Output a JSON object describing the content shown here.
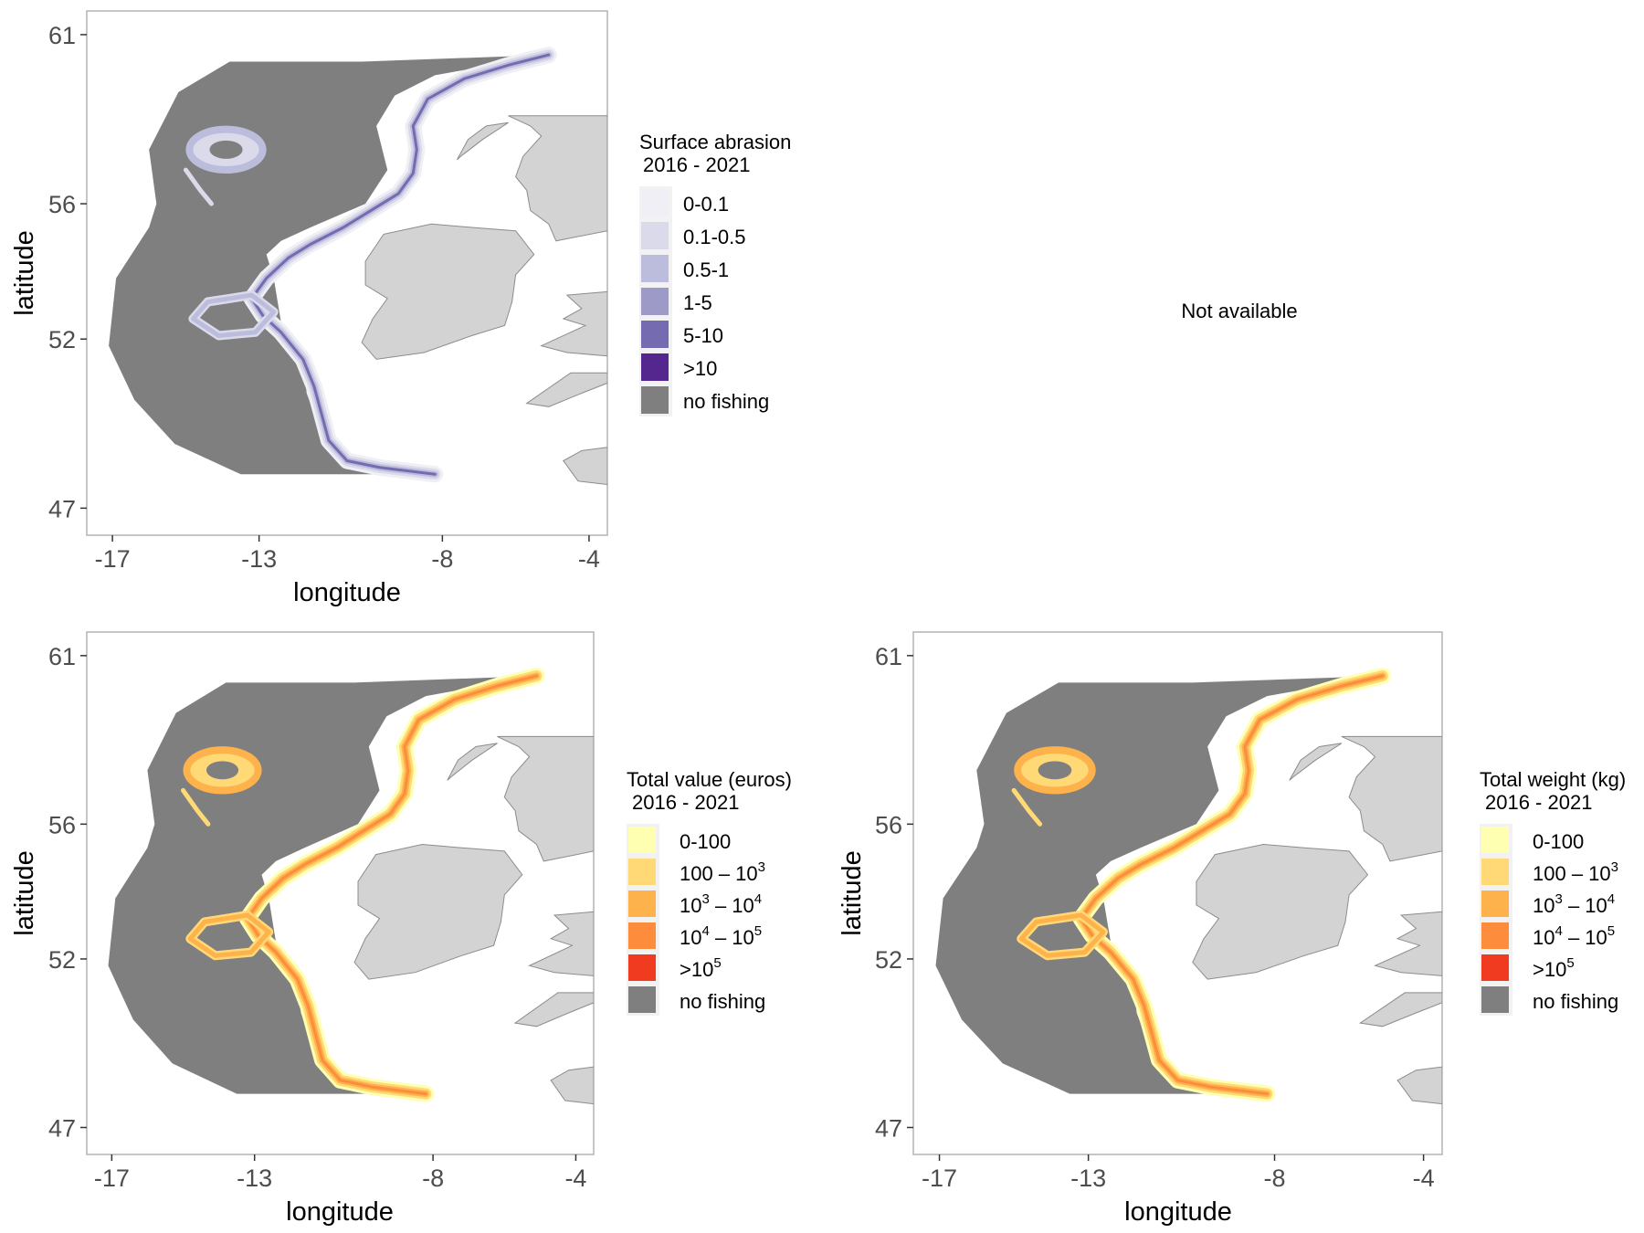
{
  "colors": {
    "no_fishing": "#7f7f7f",
    "land": "#d3d3d3",
    "land_border": "#8c8c8c",
    "panel_border": "#b3b3b3",
    "abrasion": [
      "#efeff5",
      "#dadaeb",
      "#bcbddc",
      "#9e9ac8",
      "#756bb1",
      "#54278f"
    ],
    "value": [
      "#ffffb2",
      "#fed976",
      "#feb24c",
      "#fd8d3c",
      "#f03b20"
    ]
  },
  "axes": {
    "xlabel": "longitude",
    "ylabel": "latitude",
    "xticks": [
      "-17",
      "-13",
      "-8",
      "-4"
    ],
    "yticks": [
      "61",
      "56",
      "52",
      "47"
    ],
    "xtick_values": [
      -17,
      -13,
      -8,
      -4
    ],
    "ytick_values": [
      61,
      56,
      52,
      47
    ],
    "xlim": [
      -17.7,
      -3.5
    ],
    "ylim": [
      46.2,
      61.7
    ]
  },
  "panels": {
    "abrasion": {
      "legend_title_1": "Surface abrasion",
      "legend_title_2": "2016 - 2021",
      "labels": [
        "0-0.1",
        "0.1-0.5",
        "0.5-1",
        "1-5",
        "5-10",
        ">10",
        "no fishing"
      ]
    },
    "not_available": {
      "text": "Not available"
    },
    "value": {
      "legend_title_1": "Total value (euros)",
      "legend_title_2": "2016 - 2021",
      "labels": [
        "0-100",
        "100 – 10^3",
        "10^3 – 10^4",
        "10^4 – 10^5",
        ">10^5",
        "no fishing"
      ]
    },
    "weight": {
      "legend_title_1": "Total weight (kg)",
      "legend_title_2": "2016 - 2021",
      "labels": [
        "0-100",
        "100 – 10^3",
        "10^3 – 10^4",
        "10^4 – 10^5",
        ">10^5",
        "no fishing"
      ]
    }
  },
  "map_data": {
    "region_outline": [
      [
        -10.2,
        60.2
      ],
      [
        -5.1,
        60.4
      ],
      [
        -8.2,
        59.8
      ],
      [
        -9.3,
        59.2
      ],
      [
        -9.8,
        58.3
      ],
      [
        -9.5,
        57.0
      ],
      [
        -10.1,
        56.0
      ],
      [
        -11.6,
        55.3
      ],
      [
        -12.4,
        54.9
      ],
      [
        -12.8,
        54.5
      ],
      [
        -12.6,
        53.8
      ],
      [
        -12.4,
        52.5
      ],
      [
        -11.8,
        51.3
      ],
      [
        -11.7,
        50.4
      ],
      [
        -11.4,
        49.5
      ],
      [
        -11.0,
        48.7
      ],
      [
        -9.8,
        48.3
      ],
      [
        -8.1,
        48.0
      ],
      [
        -13.5,
        48.0
      ],
      [
        -15.3,
        48.9
      ],
      [
        -16.4,
        50.2
      ],
      [
        -17.1,
        51.8
      ],
      [
        -16.9,
        53.8
      ],
      [
        -16.0,
        55.3
      ],
      [
        -15.8,
        56.0
      ],
      [
        -16.0,
        57.6
      ],
      [
        -15.2,
        59.3
      ],
      [
        -13.8,
        60.2
      ]
    ],
    "shelf_edge": [
      [
        -5.1,
        60.4
      ],
      [
        -6.2,
        60.1
      ],
      [
        -7.4,
        59.7
      ],
      [
        -8.4,
        59.1
      ],
      [
        -8.8,
        58.3
      ],
      [
        -8.7,
        57.6
      ],
      [
        -8.8,
        56.9
      ],
      [
        -9.2,
        56.3
      ],
      [
        -9.8,
        55.9
      ],
      [
        -10.7,
        55.3
      ],
      [
        -11.6,
        54.8
      ],
      [
        -12.2,
        54.4
      ],
      [
        -12.8,
        53.8
      ],
      [
        -13.2,
        53.2
      ],
      [
        -12.9,
        52.7
      ],
      [
        -12.4,
        52.2
      ],
      [
        -11.8,
        51.4
      ],
      [
        -11.5,
        50.6
      ],
      [
        -11.3,
        49.8
      ],
      [
        -11.1,
        49.0
      ],
      [
        -10.6,
        48.4
      ],
      [
        -9.7,
        48.2
      ],
      [
        -8.2,
        48.0
      ]
    ],
    "porcupine_bank": [
      [
        -13.2,
        53.3
      ],
      [
        -14.4,
        53.1
      ],
      [
        -14.8,
        52.6
      ],
      [
        -14.1,
        52.1
      ],
      [
        -13.1,
        52.2
      ],
      [
        -12.6,
        52.8
      ]
    ],
    "rockall_ring": {
      "center": [
        -13.9,
        57.6
      ],
      "radius": [
        1.0,
        0.6
      ]
    },
    "rockall_arm": [
      [
        -15.0,
        57.0
      ],
      [
        -14.6,
        56.4
      ],
      [
        -14.3,
        56.0
      ]
    ],
    "land_ireland": [
      [
        -10.1,
        54.3
      ],
      [
        -9.6,
        55.1
      ],
      [
        -8.3,
        55.4
      ],
      [
        -7.2,
        55.3
      ],
      [
        -6.0,
        55.2
      ],
      [
        -5.5,
        54.5
      ],
      [
        -6.0,
        53.9
      ],
      [
        -6.1,
        53.1
      ],
      [
        -6.3,
        52.4
      ],
      [
        -7.2,
        52.1
      ],
      [
        -8.5,
        51.6
      ],
      [
        -9.8,
        51.4
      ],
      [
        -10.2,
        51.9
      ],
      [
        -9.9,
        52.6
      ],
      [
        -9.5,
        53.2
      ],
      [
        -10.1,
        53.6
      ]
    ],
    "land_scotland": [
      [
        -6.2,
        58.6
      ],
      [
        -5.0,
        58.6
      ],
      [
        -3.5,
        58.6
      ],
      [
        -3.5,
        55.2
      ],
      [
        -4.9,
        54.9
      ],
      [
        -5.1,
        55.4
      ],
      [
        -5.6,
        55.8
      ],
      [
        -5.7,
        56.4
      ],
      [
        -6.0,
        56.8
      ],
      [
        -5.8,
        57.4
      ],
      [
        -5.3,
        58.0
      ],
      [
        -5.6,
        58.3
      ]
    ],
    "land_hebrides": [
      [
        -7.5,
        57.4
      ],
      [
        -6.9,
        57.9
      ],
      [
        -6.2,
        58.4
      ],
      [
        -6.8,
        58.3
      ],
      [
        -7.3,
        57.9
      ],
      [
        -7.6,
        57.3
      ]
    ],
    "land_wales": [
      [
        -5.3,
        51.8
      ],
      [
        -4.6,
        51.6
      ],
      [
        -3.5,
        51.5
      ],
      [
        -3.5,
        53.4
      ],
      [
        -4.6,
        53.3
      ],
      [
        -4.2,
        52.9
      ],
      [
        -4.7,
        52.6
      ],
      [
        -4.1,
        52.4
      ]
    ],
    "land_cornwall": [
      [
        -5.7,
        50.1
      ],
      [
        -5.1,
        50.0
      ],
      [
        -4.2,
        50.4
      ],
      [
        -3.5,
        50.7
      ],
      [
        -3.5,
        51.0
      ],
      [
        -4.5,
        51.0
      ]
    ],
    "land_brittany": [
      [
        -4.7,
        48.4
      ],
      [
        -4.2,
        48.7
      ],
      [
        -3.5,
        48.8
      ],
      [
        -3.5,
        47.7
      ],
      [
        -4.3,
        47.8
      ]
    ]
  }
}
